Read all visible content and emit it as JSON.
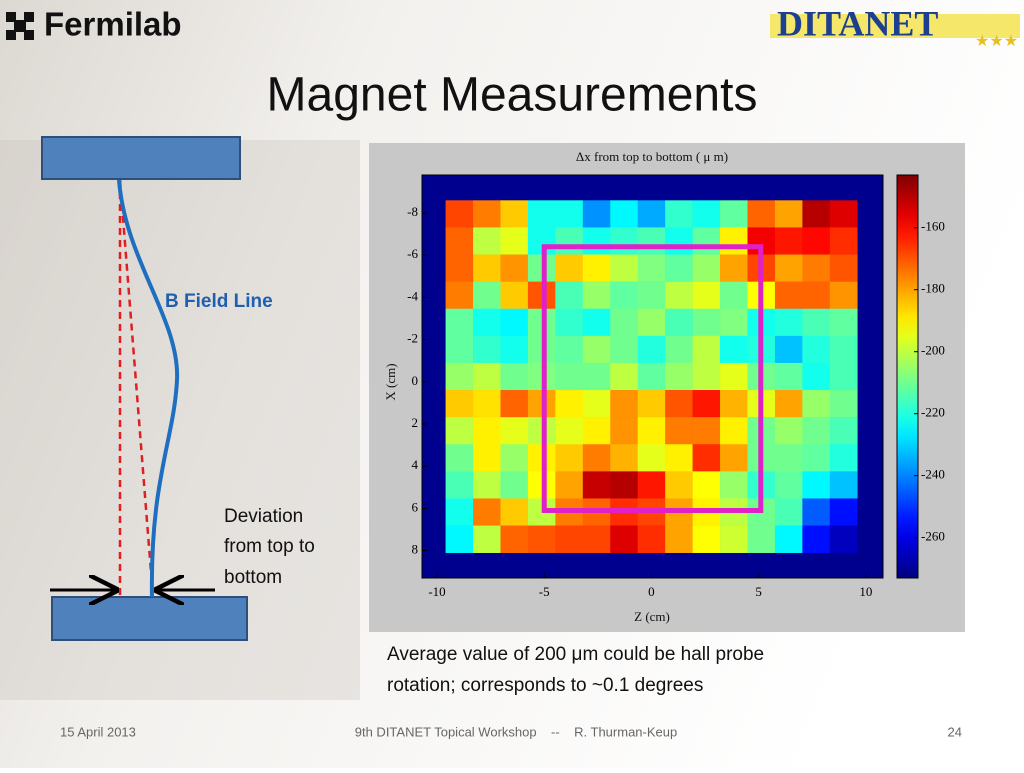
{
  "header": {
    "logo_left": "Fermilab",
    "logo_right": "DITANET",
    "title": "Magnet Measurements"
  },
  "diagram": {
    "field_label": "B Field Line",
    "deviation_lines": [
      "Deviation",
      "from top to",
      "bottom"
    ]
  },
  "chart_data": {
    "type": "heatmap",
    "title": "Δx from top to bottom  ( μ m)",
    "xlabel": "Z  (cm)",
    "ylabel": "X  (cm)",
    "xlim": [
      -10.7,
      10.8
    ],
    "xticks": [
      -10,
      -5,
      0,
      5,
      10
    ],
    "ylim": [
      -9.8,
      9.3
    ],
    "yticks": [
      -8,
      -6,
      -4,
      -2,
      0,
      2,
      4,
      6,
      8
    ],
    "y_inverted": true,
    "cell_xlim": [
      -9.6,
      9.6
    ],
    "cell_ylim": [
      -8.6,
      8.1
    ],
    "clim": [
      -273,
      -143
    ],
    "cticks": [
      -160,
      -180,
      -200,
      -220,
      -240,
      -260
    ],
    "colormap": "jet",
    "background": "#00008f",
    "box": {
      "xlim": [
        -5,
        5.1
      ],
      "ylim": [
        -6.4,
        6.1
      ],
      "color": "#e020c8"
    },
    "values": [
      [
        -168,
        -175,
        -185,
        -222,
        -222,
        -238,
        -225,
        -235,
        -218,
        -222,
        -212,
        -172,
        -180,
        -150,
        -155
      ],
      [
        -172,
        -200,
        -195,
        -222,
        -215,
        -222,
        -218,
        -215,
        -222,
        -212,
        -190,
        -158,
        -162,
        -160,
        -165
      ],
      [
        -172,
        -185,
        -178,
        -210,
        -185,
        -190,
        -200,
        -208,
        -212,
        -205,
        -180,
        -168,
        -180,
        -175,
        -170
      ],
      [
        -175,
        -210,
        -185,
        -170,
        -215,
        -205,
        -212,
        -210,
        -200,
        -195,
        -210,
        -192,
        -172,
        -172,
        -178
      ],
      [
        -212,
        -222,
        -225,
        -210,
        -218,
        -222,
        -210,
        -205,
        -215,
        -210,
        -208,
        -222,
        -220,
        -215,
        -212
      ],
      [
        -212,
        -218,
        -222,
        -210,
        -212,
        -205,
        -210,
        -220,
        -210,
        -200,
        -222,
        -220,
        -232,
        -220,
        -215
      ],
      [
        -205,
        -200,
        -210,
        -208,
        -210,
        -210,
        -200,
        -212,
        -205,
        -200,
        -195,
        -210,
        -212,
        -222,
        -215
      ],
      [
        -185,
        -188,
        -172,
        -180,
        -190,
        -195,
        -178,
        -185,
        -170,
        -162,
        -182,
        -195,
        -180,
        -205,
        -210
      ],
      [
        -200,
        -190,
        -195,
        -200,
        -195,
        -190,
        -178,
        -190,
        -175,
        -175,
        -190,
        -210,
        -205,
        -210,
        -215
      ],
      [
        -210,
        -190,
        -205,
        -190,
        -185,
        -175,
        -182,
        -195,
        -190,
        -165,
        -180,
        -210,
        -210,
        -212,
        -220
      ],
      [
        -215,
        -200,
        -210,
        -192,
        -180,
        -152,
        -150,
        -162,
        -185,
        -192,
        -205,
        -218,
        -212,
        -225,
        -232
      ],
      [
        -222,
        -175,
        -185,
        -200,
        -175,
        -172,
        -165,
        -168,
        -180,
        -190,
        -200,
        -210,
        -215,
        -245,
        -255
      ],
      [
        -225,
        -200,
        -172,
        -170,
        -168,
        -168,
        -155,
        -165,
        -180,
        -192,
        -198,
        -210,
        -225,
        -255,
        -265
      ]
    ]
  },
  "caption": [
    "Average value of 200 μm could be hall probe",
    "rotation;  corresponds to ~0.1 degrees"
  ],
  "footer": {
    "date": "15 April 2013",
    "event": "9th DITANET Topical Workshop    --    R. Thurman-Keup",
    "page": "24"
  }
}
